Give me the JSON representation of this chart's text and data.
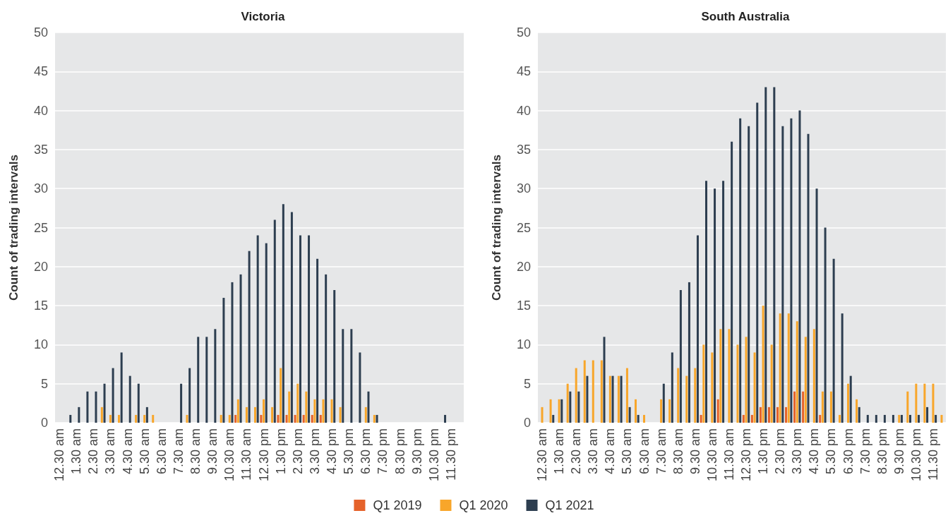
{
  "chart_data": [
    {
      "type": "bar",
      "title": "Victoria",
      "ylabel": "Count of trading intervals",
      "categories": [
        "12.30 am",
        null,
        "1.30 am",
        null,
        "2.30 am",
        null,
        "3.30 am",
        null,
        "4.30 am",
        null,
        "5.30 am",
        null,
        "6.30 am",
        null,
        "7.30 am",
        null,
        "8.30 am",
        null,
        "9.30 am",
        null,
        "10.30 am",
        null,
        "11.30 am",
        null,
        "12.30 pm",
        null,
        "1.30 pm",
        null,
        "2.30 pm",
        null,
        "3.30 pm",
        null,
        "4.30 pm",
        null,
        "5.30 pm",
        null,
        "6.30 pm",
        null,
        "7.30 pm",
        null,
        "8.30 pm",
        null,
        "9.30 pm",
        null,
        "10.30 pm",
        null,
        "11.30 pm",
        null
      ],
      "series": [
        {
          "name": "Q1 2019",
          "color": "#e5622a",
          "values": [
            0,
            0,
            0,
            0,
            0,
            0,
            0,
            0,
            0,
            0,
            0,
            0,
            0,
            0,
            0,
            0,
            0,
            0,
            0,
            0,
            0,
            1,
            0,
            0,
            1,
            0,
            1,
            1,
            1,
            1,
            1,
            1,
            0,
            0,
            0,
            0,
            0,
            0,
            0,
            0,
            0,
            0,
            0,
            0,
            0,
            0,
            0,
            0
          ]
        },
        {
          "name": "Q1 2020",
          "color": "#f8a62a",
          "values": [
            0,
            0,
            0,
            0,
            0,
            2,
            1,
            1,
            0,
            1,
            1,
            1,
            0,
            0,
            0,
            1,
            0,
            0,
            0,
            1,
            1,
            3,
            2,
            2,
            3,
            2,
            7,
            4,
            5,
            4,
            3,
            3,
            3,
            2,
            0,
            0,
            2,
            1,
            0,
            0,
            0,
            0,
            0,
            0,
            0,
            0,
            0,
            0
          ]
        },
        {
          "name": "Q1 2021",
          "color": "#2d3e50",
          "values": [
            0,
            1,
            2,
            4,
            4,
            5,
            7,
            9,
            6,
            5,
            2,
            0,
            0,
            0,
            5,
            7,
            11,
            11,
            12,
            16,
            18,
            19,
            22,
            24,
            23,
            26,
            28,
            27,
            24,
            24,
            21,
            19,
            17,
            12,
            12,
            9,
            4,
            1,
            0,
            0,
            0,
            0,
            0,
            0,
            0,
            1,
            0,
            0
          ]
        }
      ],
      "ylim": [
        0,
        50
      ],
      "yticks": [
        0,
        5,
        10,
        15,
        20,
        25,
        30,
        35,
        40,
        45,
        50
      ],
      "grid": "y",
      "legend": "bottom"
    },
    {
      "type": "bar",
      "title": "South Australia",
      "ylabel": "Count of trading intervals",
      "categories": [
        "12.30 am",
        null,
        "1.30 am",
        null,
        "2.30 am",
        null,
        "3.30 am",
        null,
        "4.30 am",
        null,
        "5.30 am",
        null,
        "6.30 am",
        null,
        "7.30 am",
        null,
        "8.30 am",
        null,
        "9.30 am",
        null,
        "10.30 am",
        null,
        "11.30 am",
        null,
        "12.30 pm",
        null,
        "1.30 pm",
        null,
        "2.30 pm",
        null,
        "3.30 pm",
        null,
        "4.30 pm",
        null,
        "5.30 pm",
        null,
        "6.30 pm",
        null,
        "7.30 pm",
        null,
        "8.30 pm",
        null,
        "9.30 pm",
        null,
        "10.30 pm",
        null,
        "11.30 pm",
        null
      ],
      "series": [
        {
          "name": "Q1 2019",
          "color": "#e5622a",
          "values": [
            0,
            0,
            0,
            0,
            0,
            0,
            0,
            0,
            0,
            0,
            0,
            0,
            0,
            0,
            0,
            0,
            0,
            0,
            0,
            1,
            0,
            3,
            0,
            0,
            1,
            1,
            2,
            2,
            2,
            2,
            4,
            4,
            0,
            1,
            0,
            0,
            0,
            0,
            0,
            0,
            0,
            0,
            0,
            0,
            0,
            0,
            0,
            0
          ]
        },
        {
          "name": "Q1 2020",
          "color": "#f8a62a",
          "values": [
            2,
            3,
            3,
            5,
            7,
            8,
            8,
            8,
            6,
            6,
            7,
            3,
            1,
            0,
            3,
            3,
            7,
            6,
            7,
            10,
            9,
            12,
            12,
            10,
            11,
            9,
            15,
            10,
            14,
            14,
            13,
            11,
            12,
            4,
            4,
            1,
            5,
            3,
            0,
            0,
            0,
            0,
            1,
            4,
            5,
            5,
            5,
            1
          ]
        },
        {
          "name": "Q1 2021",
          "color": "#2d3e50",
          "values": [
            0,
            1,
            3,
            4,
            4,
            6,
            0,
            11,
            6,
            6,
            2,
            1,
            0,
            0,
            5,
            9,
            17,
            18,
            24,
            31,
            30,
            31,
            36,
            39,
            38,
            41,
            43,
            43,
            38,
            39,
            40,
            37,
            30,
            25,
            21,
            14,
            6,
            2,
            1,
            1,
            1,
            1,
            1,
            1,
            1,
            2,
            1,
            0
          ]
        }
      ],
      "ylim": [
        0,
        50
      ],
      "yticks": [
        0,
        5,
        10,
        15,
        20,
        25,
        30,
        35,
        40,
        45,
        50
      ],
      "grid": "y"
    }
  ]
}
